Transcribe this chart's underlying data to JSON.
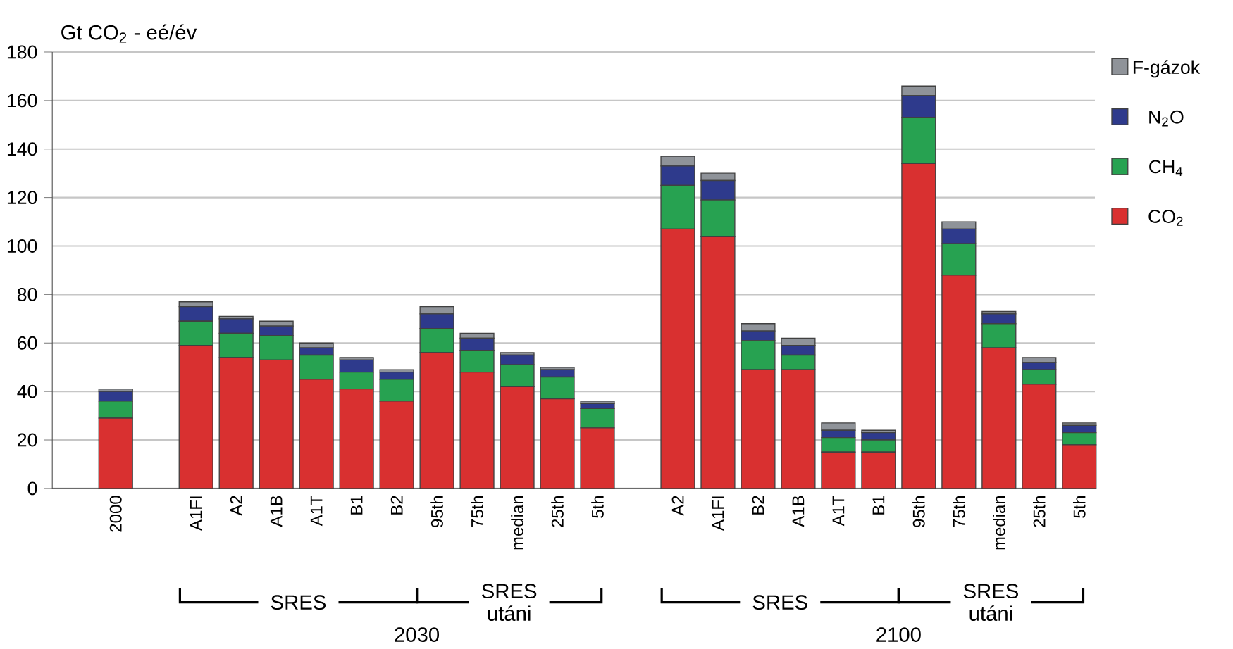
{
  "chart_data": {
    "type": "bar",
    "stacked": true,
    "ylabel": "Gt CO$_{2}$ - eé/év",
    "categories": [
      "2000",
      null,
      "A1FI",
      "A2",
      "A1B",
      "A1T",
      "B1",
      "B2",
      "95th",
      "75th",
      "median",
      "25th",
      "5th",
      null,
      "A2",
      "A1FI",
      "B2",
      "A1B",
      "A1T",
      "B1",
      "95th",
      "75th",
      "median",
      "25th",
      "5th"
    ],
    "series": [
      {
        "name": "CO$_{2}$",
        "color": "#d93030",
        "values": [
          29,
          null,
          59,
          54,
          53,
          45,
          41,
          36,
          56,
          48,
          42,
          37,
          25,
          null,
          107,
          104,
          49,
          49,
          15,
          15,
          134,
          88,
          58,
          43,
          18
        ]
      },
      {
        "name": "CH$_{4}$",
        "color": "#27a251",
        "values": [
          7,
          null,
          10,
          10,
          10,
          10,
          7,
          9,
          10,
          9,
          9,
          9,
          8,
          null,
          18,
          15,
          12,
          6,
          6,
          5,
          19,
          13,
          10,
          6,
          5
        ]
      },
      {
        "name": "N$_{2}$O",
        "color": "#2e3a8c",
        "values": [
          4,
          null,
          6,
          6,
          4,
          3,
          5,
          3,
          6,
          5,
          4,
          3,
          2,
          null,
          8,
          8,
          4,
          4,
          3,
          3,
          9,
          6,
          4,
          3,
          3
        ]
      },
      {
        "name": "F-gázok",
        "color": "#8f9399",
        "values": [
          1,
          null,
          2,
          1,
          2,
          2,
          1,
          1,
          3,
          2,
          1,
          1,
          1,
          null,
          4,
          3,
          3,
          3,
          3,
          1,
          4,
          3,
          1,
          2,
          1
        ]
      }
    ],
    "ylim": [
      0,
      180
    ],
    "yticks": [
      0,
      20,
      40,
      60,
      80,
      100,
      120,
      140,
      160,
      180
    ],
    "grid": "y",
    "legend": "right",
    "annotations": [
      "SRES",
      "SRES utáni",
      "SRES",
      "SRES utáni",
      "2030",
      "2100"
    ]
  }
}
